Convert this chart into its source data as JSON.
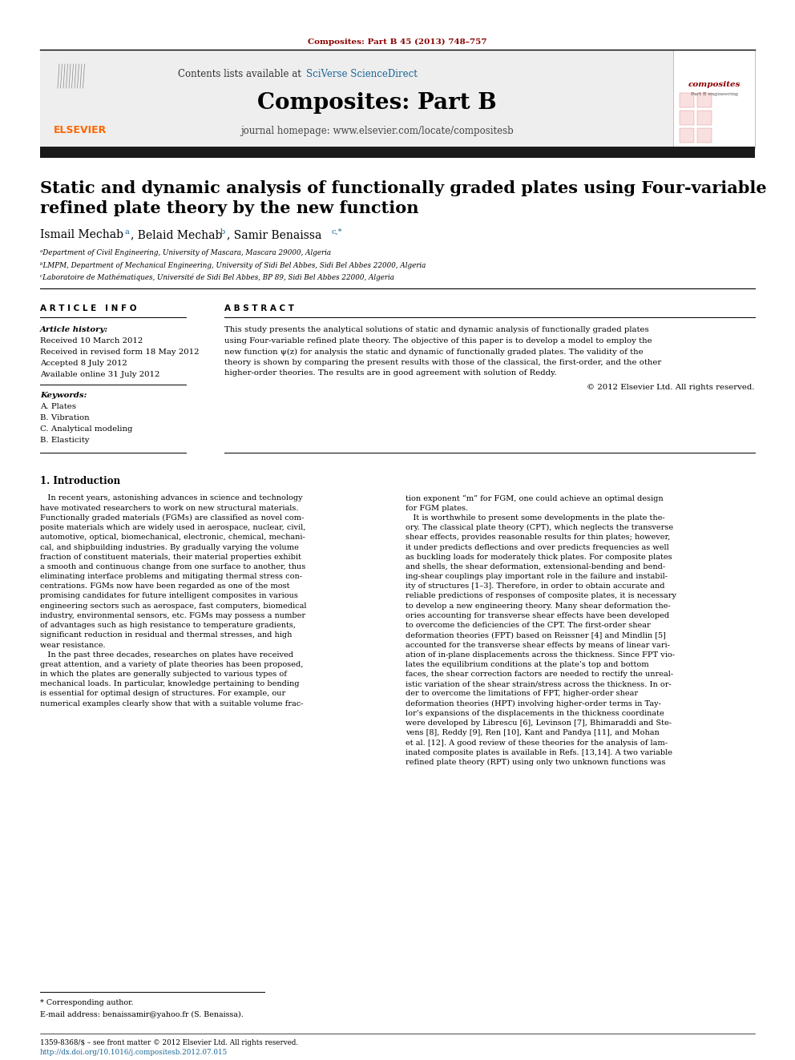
{
  "page_bg": "#ffffff",
  "top_citation": "Composites: Part B 45 (2013) 748–757",
  "top_citation_color": "#8B0000",
  "header_link1_color": "#1a6496",
  "journal_name": "Composites: Part B",
  "journal_homepage": "journal homepage: www.elsevier.com/locate/compositesb",
  "elsevier_color": "#FF6600",
  "black_bar_color": "#1a1a1a",
  "paper_title_line1": "Static and dynamic analysis of functionally graded plates using Four-variable",
  "paper_title_line2": "refined plate theory by the new function",
  "affil_a": "ᵃDepartment of Civil Engineering, University of Mascara, Mascara 29000, Algeria",
  "affil_b": "ᵇLMPM, Department of Mechanical Engineering, University of Sidi Bel Abbes, Sidi Bel Abbes 22000, Algeria",
  "affil_c": "ᶜLaboratoire de Mathématiques, Université de Sidi Bel Abbes, BP 89, Sidi Bel Abbes 22000, Algeria",
  "article_info_header": "A R T I C L E   I N F O",
  "abstract_header": "A B S T R A C T",
  "article_history_label": "Article history:",
  "received1": "Received 10 March 2012",
  "received2": "Received in revised form 18 May 2012",
  "accepted": "Accepted 8 July 2012",
  "available": "Available online 31 July 2012",
  "keywords_label": "Keywords:",
  "keyword1": "A. Plates",
  "keyword2": "B. Vibration",
  "keyword3": "C. Analytical modeling",
  "keyword4": "B. Elasticity",
  "abstract_text": "This study presents the analytical solutions of static and dynamic analysis of functionally graded plates\nusing Four-variable refined plate theory. The objective of this paper is to develop a model to employ the\nnew function ψ(z) for analysis the static and dynamic of functionally graded plates. The validity of the\ntheory is shown by comparing the present results with those of the classical, the first-order, and the other\nhigher-order theories. The results are in good agreement with solution of Reddy.",
  "copyright": "© 2012 Elsevier Ltd. All rights reserved.",
  "intro_heading": "1. Introduction",
  "intro_col1": "   In recent years, astonishing advances in science and technology\nhave motivated researchers to work on new structural materials.\nFunctionally graded materials (FGMs) are classified as novel com-\nposite materials which are widely used in aerospace, nuclear, civil,\nautomotive, optical, biomechanical, electronic, chemical, mechani-\ncal, and shipbuilding industries. By gradually varying the volume\nfraction of constituent materials, their material properties exhibit\na smooth and continuous change from one surface to another, thus\neliminating interface problems and mitigating thermal stress con-\ncentrations. FGMs now have been regarded as one of the most\npromising candidates for future intelligent composites in various\nengineering sectors such as aerospace, fast computers, biomedical\nindustry, environmental sensors, etc. FGMs may possess a number\nof advantages such as high resistance to temperature gradients,\nsignificant reduction in residual and thermal stresses, and high\nwear resistance.\n   In the past three decades, researches on plates have received\ngreat attention, and a variety of plate theories has been proposed,\nin which the plates are generally subjected to various types of\nmechanical loads. In particular, knowledge pertaining to bending\nis essential for optimal design of structures. For example, our\nnumerical examples clearly show that with a suitable volume frac-",
  "intro_col2": "tion exponent “m” for FGM, one could achieve an optimal design\nfor FGM plates.\n   It is worthwhile to present some developments in the plate the-\nory. The classical plate theory (CPT), which neglects the transverse\nshear effects, provides reasonable results for thin plates; however,\nit under predicts deflections and over predicts frequencies as well\nas buckling loads for moderately thick plates. For composite plates\nand shells, the shear deformation, extensional-bending and bend-\ning-shear couplings play important role in the failure and instabil-\nity of structures [1–3]. Therefore, in order to obtain accurate and\nreliable predictions of responses of composite plates, it is necessary\nto develop a new engineering theory. Many shear deformation the-\nories accounting for transverse shear effects have been developed\nto overcome the deficiencies of the CPT. The first-order shear\ndeformation theories (FPT) based on Reissner [4] and Mindlin [5]\naccounted for the transverse shear effects by means of linear vari-\nation of in-plane displacements across the thickness. Since FPT vio-\nlates the equilibrium conditions at the plate’s top and bottom\nfaces, the shear correction factors are needed to rectify the unreal-\nistic variation of the shear strain/stress across the thickness. In or-\nder to overcome the limitations of FPT, higher-order shear\ndeformation theories (HPT) involving higher-order terms in Tay-\nlor’s expansions of the displacements in the thickness coordinate\nwere developed by Librescu [6], Levinson [7], Bhimaraddi and Ste-\nvens [8], Reddy [9], Ren [10], Kant and Pandya [11], and Mohan\net al. [12]. A good review of these theories for the analysis of lam-\ninated composite plates is available in Refs. [13,14]. A two variable\nrefined plate theory (RPT) using only two unknown functions was",
  "footnote_star": "* Corresponding author.",
  "footnote_email": "E-mail address: benaissamir@yahoo.fr (S. Benaissa).",
  "footer_issn": "1359-8368/$ – see front matter © 2012 Elsevier Ltd. All rights reserved.",
  "footer_doi": "http://dx.doi.org/10.1016/j.compositesb.2012.07.015"
}
